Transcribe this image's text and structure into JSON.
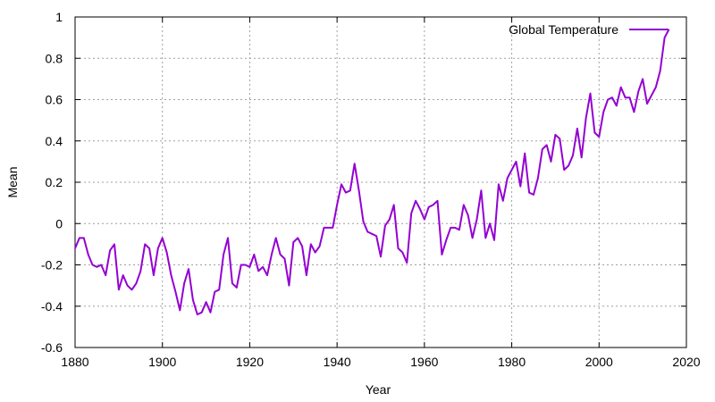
{
  "chart_data": {
    "type": "line",
    "title": "",
    "xlabel": "Year",
    "ylabel": "Mean",
    "xlim": [
      1880,
      2020
    ],
    "ylim": [
      -0.6,
      1.0
    ],
    "xticks": [
      1880,
      1900,
      1920,
      1940,
      1960,
      1980,
      2000,
      2020
    ],
    "yticks": [
      -0.6,
      -0.4,
      -0.2,
      0,
      0.2,
      0.4,
      0.6,
      0.8,
      1.0
    ],
    "ytick_labels": [
      "-0.6",
      "-0.4",
      "-0.2",
      "0",
      "0.2",
      "0.4",
      "0.6",
      "0.8",
      "1"
    ],
    "grid": true,
    "legend_position": "top-right",
    "colors": {
      "series": "#9400d3",
      "grid": "#a0a0a0",
      "axis": "#000000"
    },
    "series": [
      {
        "name": "Global Temperature",
        "x": [
          1880,
          1881,
          1882,
          1883,
          1884,
          1885,
          1886,
          1887,
          1888,
          1889,
          1890,
          1891,
          1892,
          1893,
          1894,
          1895,
          1896,
          1897,
          1898,
          1899,
          1900,
          1901,
          1902,
          1903,
          1904,
          1905,
          1906,
          1907,
          1908,
          1909,
          1910,
          1911,
          1912,
          1913,
          1914,
          1915,
          1916,
          1917,
          1918,
          1919,
          1920,
          1921,
          1922,
          1923,
          1924,
          1925,
          1926,
          1927,
          1928,
          1929,
          1930,
          1931,
          1932,
          1933,
          1934,
          1935,
          1936,
          1937,
          1938,
          1939,
          1940,
          1941,
          1942,
          1943,
          1944,
          1945,
          1946,
          1947,
          1948,
          1949,
          1950,
          1951,
          1952,
          1953,
          1954,
          1955,
          1956,
          1957,
          1958,
          1959,
          1960,
          1961,
          1962,
          1963,
          1964,
          1965,
          1966,
          1967,
          1968,
          1969,
          1970,
          1971,
          1972,
          1973,
          1974,
          1975,
          1976,
          1977,
          1978,
          1979,
          1980,
          1981,
          1982,
          1983,
          1984,
          1985,
          1986,
          1987,
          1988,
          1989,
          1990,
          1991,
          1992,
          1993,
          1994,
          1995,
          1996,
          1997,
          1998,
          1999,
          2000,
          2001,
          2002,
          2003,
          2004,
          2005,
          2006,
          2007,
          2008,
          2009,
          2010,
          2011,
          2012,
          2013,
          2014,
          2015,
          2016
        ],
        "values": [
          -0.12,
          -0.07,
          -0.07,
          -0.15,
          -0.2,
          -0.21,
          -0.2,
          -0.25,
          -0.13,
          -0.1,
          -0.32,
          -0.25,
          -0.3,
          -0.32,
          -0.29,
          -0.23,
          -0.1,
          -0.12,
          -0.25,
          -0.12,
          -0.07,
          -0.14,
          -0.25,
          -0.33,
          -0.42,
          -0.29,
          -0.22,
          -0.37,
          -0.44,
          -0.43,
          -0.38,
          -0.43,
          -0.33,
          -0.32,
          -0.15,
          -0.07,
          -0.29,
          -0.31,
          -0.2,
          -0.2,
          -0.21,
          -0.15,
          -0.23,
          -0.21,
          -0.25,
          -0.15,
          -0.07,
          -0.15,
          -0.17,
          -0.3,
          -0.09,
          -0.07,
          -0.11,
          -0.25,
          -0.1,
          -0.14,
          -0.11,
          -0.02,
          -0.02,
          -0.02,
          0.09,
          0.19,
          0.15,
          0.16,
          0.29,
          0.16,
          0.01,
          -0.04,
          -0.05,
          -0.06,
          -0.16,
          -0.01,
          0.02,
          0.09,
          -0.12,
          -0.14,
          -0.19,
          0.05,
          0.11,
          0.07,
          0.02,
          0.08,
          0.09,
          0.11,
          -0.15,
          -0.08,
          -0.02,
          -0.02,
          -0.03,
          0.09,
          0.04,
          -0.07,
          0.02,
          0.16,
          -0.07,
          0.0,
          -0.08,
          0.19,
          0.11,
          0.22,
          0.26,
          0.3,
          0.18,
          0.34,
          0.15,
          0.14,
          0.22,
          0.36,
          0.38,
          0.3,
          0.43,
          0.41,
          0.26,
          0.28,
          0.33,
          0.46,
          0.32,
          0.51,
          0.63,
          0.44,
          0.42,
          0.54,
          0.6,
          0.61,
          0.57,
          0.66,
          0.61,
          0.61,
          0.54,
          0.64,
          0.7,
          0.58,
          0.62,
          0.66,
          0.74,
          0.9,
          0.94
        ]
      }
    ]
  }
}
